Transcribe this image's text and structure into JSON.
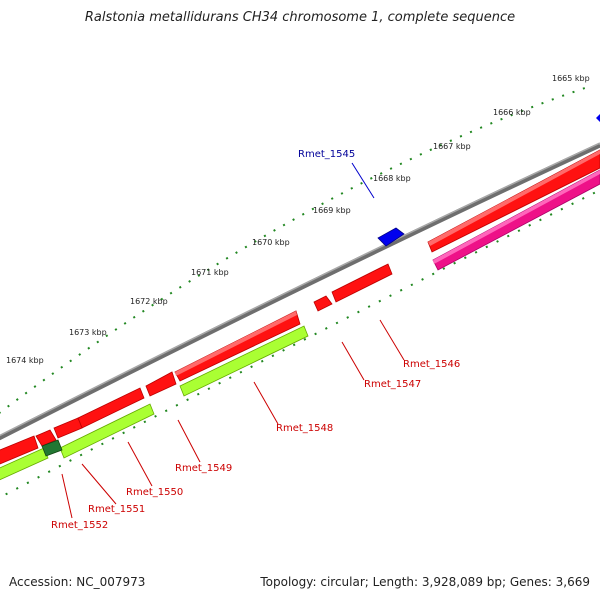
{
  "title": "Ralstonia metallidurans CH34 chromosome 1, complete sequence",
  "footer": {
    "accession": "Accession: NC_007973",
    "summary": "Topology: circular; Length: 3,928,089 bp; Genes: 3,669"
  },
  "ticks": [
    "1665 kbp",
    "1666 kbp",
    "1667 kbp",
    "1668 kbp",
    "1669 kbp",
    "1670 kbp",
    "1671 kbp",
    "1672 kbp",
    "1673 kbp",
    "1674 kbp"
  ],
  "colors": {
    "backbone": "#888888",
    "forward_cds": "#ff0000",
    "reverse_cds": "#ff0000",
    "trna_like": "#99ff33",
    "pink_track": "#ee1188",
    "blue_feature": "#0000ee",
    "dark_green_feature": "#228833",
    "tick_green": "#228822",
    "label_red": "#cc0000",
    "label_blue": "#000099"
  },
  "genes": [
    {
      "name": "Rmet_1545",
      "color": "blue"
    },
    {
      "name": "Rmet_1546",
      "color": "red"
    },
    {
      "name": "Rmet_1547",
      "color": "red"
    },
    {
      "name": "Rmet_1548",
      "color": "red"
    },
    {
      "name": "Rmet_1549",
      "color": "red"
    },
    {
      "name": "Rmet_1550",
      "color": "red"
    },
    {
      "name": "Rmet_1551",
      "color": "red"
    },
    {
      "name": "Rmet_1552",
      "color": "red"
    }
  ]
}
